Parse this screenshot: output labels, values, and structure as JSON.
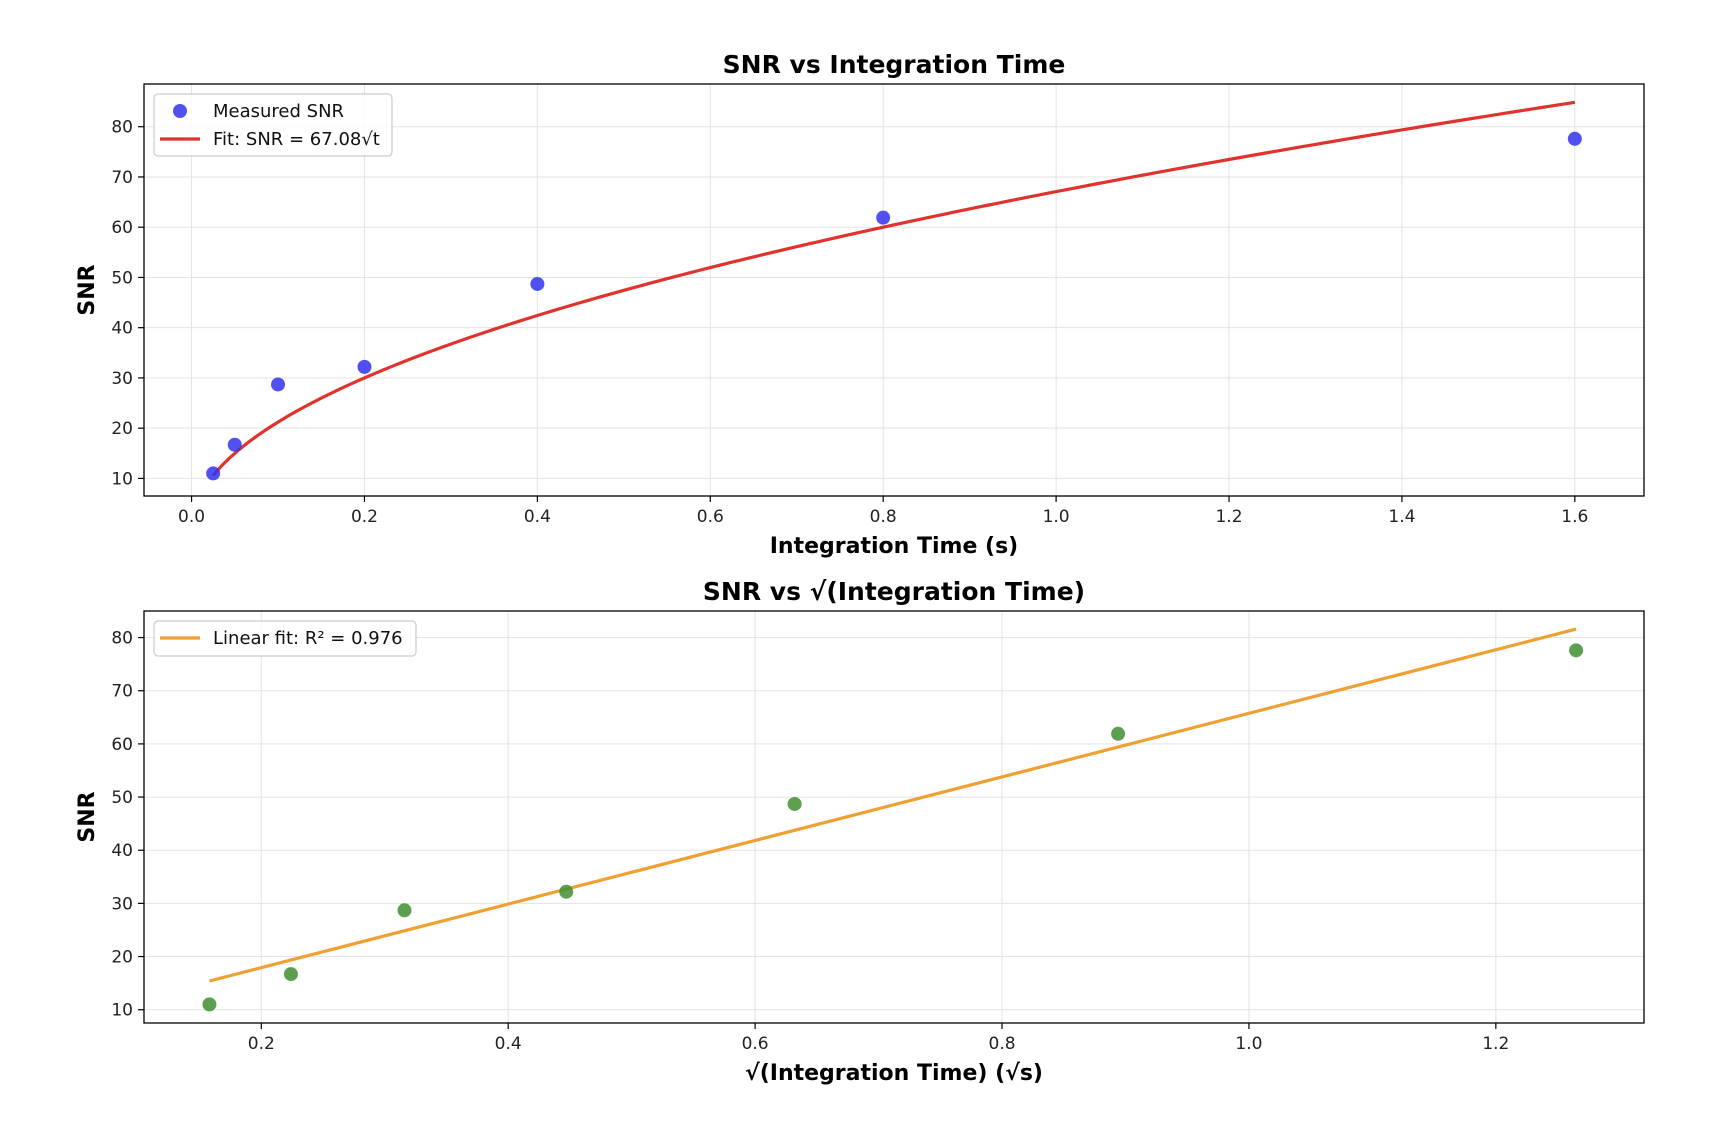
{
  "chart_data": [
    {
      "type": "scatter",
      "title": "SNR vs Integration Time",
      "xlabel": "Integration Time (s)",
      "ylabel": "SNR",
      "xlim": [
        -0.055,
        1.68
      ],
      "ylim": [
        6.5,
        88.5
      ],
      "xticks": [
        0.0,
        0.2,
        0.4,
        0.6,
        0.8,
        1.0,
        1.2,
        1.4,
        1.6
      ],
      "xtick_labels": [
        "0.0",
        "0.2",
        "0.4",
        "0.6",
        "0.8",
        "1.0",
        "1.2",
        "1.4",
        "1.6"
      ],
      "yticks": [
        10,
        20,
        30,
        40,
        50,
        60,
        70,
        80
      ],
      "ytick_labels": [
        "10",
        "20",
        "30",
        "40",
        "50",
        "60",
        "70",
        "80"
      ],
      "grid": true,
      "legend_position": "top-left",
      "series": [
        {
          "name": "Measured SNR",
          "kind": "scatter",
          "color": "#3333ee",
          "x": [
            0.025,
            0.05,
            0.1,
            0.2,
            0.4,
            0.8,
            1.6
          ],
          "y": [
            11.0,
            16.7,
            28.7,
            32.2,
            48.7,
            61.9,
            77.6
          ]
        },
        {
          "name": "Fit: SNR = 67.08√t",
          "kind": "line",
          "color": "#e0332e",
          "function": "sqrt",
          "coefficient": 67.08,
          "x_range": [
            0.025,
            1.6
          ]
        }
      ]
    },
    {
      "type": "scatter",
      "title": "SNR vs √(Integration Time)",
      "xlabel": "√(Integration Time) (√s)",
      "ylabel": "SNR",
      "xlim": [
        0.105,
        1.32
      ],
      "ylim": [
        7.5,
        85.0
      ],
      "xticks": [
        0.2,
        0.4,
        0.6,
        0.8,
        1.0,
        1.2
      ],
      "xtick_labels": [
        "0.2",
        "0.4",
        "0.6",
        "0.8",
        "1.0",
        "1.2"
      ],
      "yticks": [
        10,
        20,
        30,
        40,
        50,
        60,
        70,
        80
      ],
      "ytick_labels": [
        "10",
        "20",
        "30",
        "40",
        "50",
        "60",
        "70",
        "80"
      ],
      "grid": true,
      "legend_position": "top-left",
      "series": [
        {
          "kind": "scatter",
          "color": "#3f8f30",
          "x": [
            0.158,
            0.224,
            0.316,
            0.447,
            0.632,
            0.894,
            1.265
          ],
          "y": [
            11.0,
            16.7,
            28.7,
            32.2,
            48.7,
            61.9,
            77.6
          ]
        },
        {
          "name": "Linear fit: R² = 0.976",
          "kind": "line",
          "color": "#f0a030",
          "x": [
            0.158,
            1.265
          ],
          "y": [
            15.4,
            81.6
          ]
        }
      ]
    }
  ]
}
